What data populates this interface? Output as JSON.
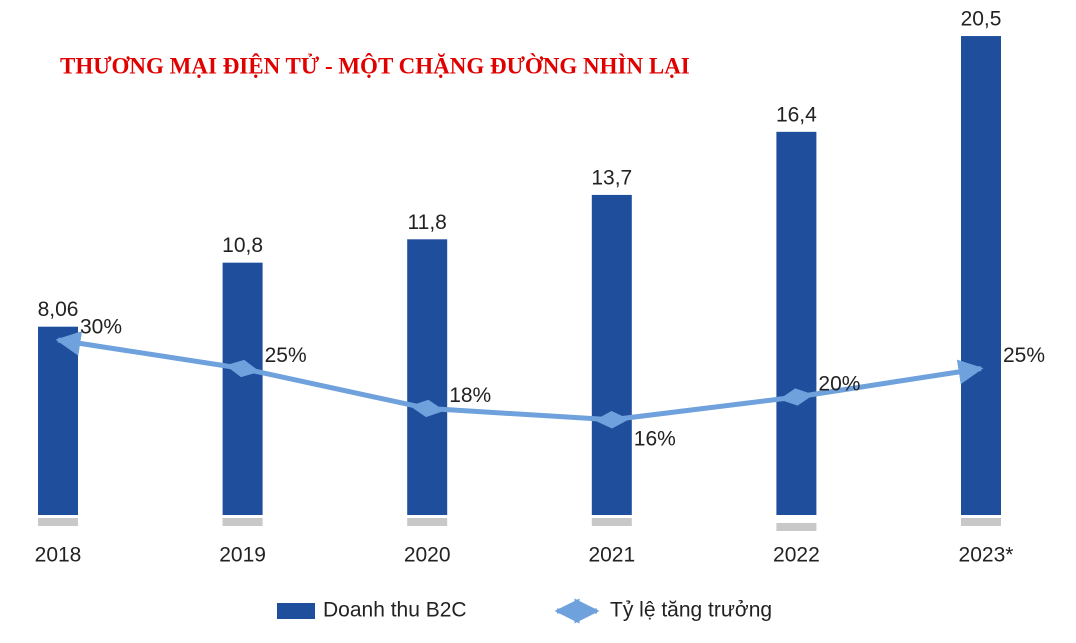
{
  "chart_data": {
    "type": "bar",
    "title": "THƯƠNG MẠI ĐIỆN TỬ - MỘT CHẶNG ĐƯỜNG NHÌN LẠI",
    "categories": [
      "2018",
      "2019",
      "2020",
      "2021",
      "2022",
      "2023*"
    ],
    "ylim": [
      0,
      22
    ],
    "y2lim": [
      0,
      30
    ],
    "series": [
      {
        "name": "Doanh thu B2C",
        "type": "bar",
        "color": "#1f4e9c",
        "values": [
          8.06,
          10.8,
          11.8,
          13.7,
          16.4,
          20.5
        ],
        "value_labels": [
          "8,06",
          "10,8",
          "11,8",
          "13,7",
          "16,4",
          "20,5"
        ]
      },
      {
        "name": "Tỷ lệ tăng trưởng",
        "type": "line",
        "axis": "y2",
        "color": "#6fa2dc",
        "values": [
          30,
          25,
          18,
          16,
          20,
          25
        ],
        "value_labels": [
          "30%",
          "25%",
          "18%",
          "16%",
          "20%",
          "25%"
        ]
      }
    ],
    "legend": "bottom"
  }
}
